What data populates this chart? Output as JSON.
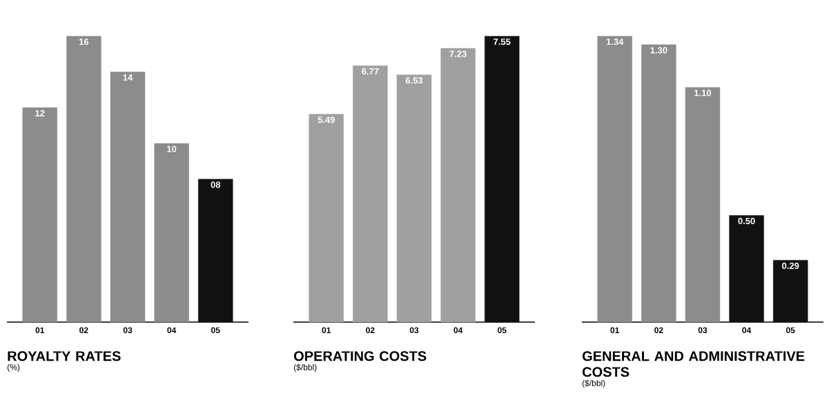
{
  "chart_data": [
    {
      "type": "bar",
      "title": "ROYALTY RATES",
      "subtitle": "(%)",
      "categories": [
        "01",
        "02",
        "03",
        "04",
        "05"
      ],
      "values": [
        12,
        16,
        14,
        10,
        8
      ],
      "value_labels": [
        "12",
        "16",
        "14",
        "10",
        "08"
      ],
      "colors": [
        "#8c8c8c",
        "#8c8c8c",
        "#8c8c8c",
        "#8c8c8c",
        "#111111"
      ]
    },
    {
      "type": "bar",
      "title": "OPERATING COSTS",
      "subtitle": "($/bbl)",
      "categories": [
        "01",
        "02",
        "03",
        "04",
        "05"
      ],
      "values": [
        5.49,
        6.77,
        6.53,
        7.23,
        7.55
      ],
      "value_labels": [
        "5.49",
        "6.77",
        "6.53",
        "7.23",
        "7.55"
      ],
      "colors": [
        "#a0a0a0",
        "#a0a0a0",
        "#a0a0a0",
        "#a0a0a0",
        "#111111"
      ]
    },
    {
      "type": "bar",
      "title": "GENERAL AND ADMINISTRATIVE COSTS",
      "subtitle": "($/bbl)",
      "categories": [
        "01",
        "02",
        "03",
        "04",
        "05"
      ],
      "values": [
        1.34,
        1.3,
        1.1,
        0.5,
        0.29
      ],
      "value_labels": [
        "1.34",
        "1.30",
        "1.10",
        "0.50",
        "0.29"
      ],
      "colors": [
        "#8c8c8c",
        "#8c8c8c",
        "#8c8c8c",
        "#111111",
        "#111111"
      ]
    }
  ]
}
